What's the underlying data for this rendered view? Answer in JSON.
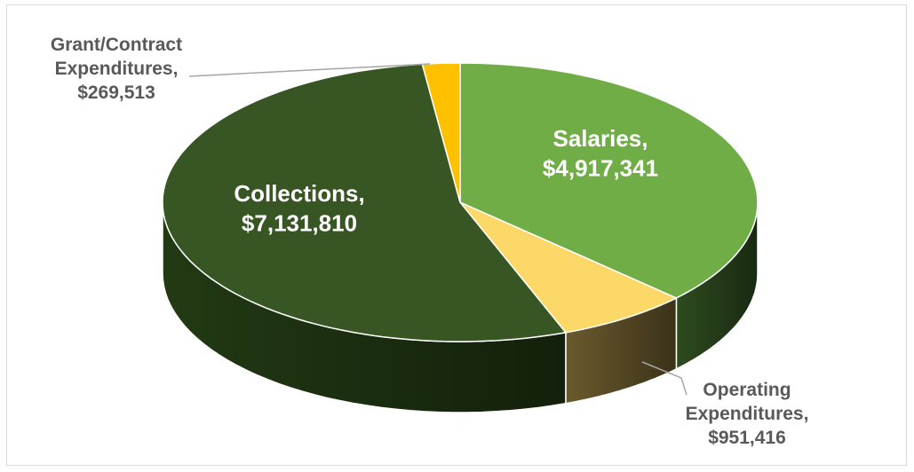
{
  "chart_data": {
    "type": "pie",
    "title": "",
    "slices": [
      {
        "label_lines": [
          "Salaries,",
          "$4,917,341"
        ],
        "value": 4917341,
        "color": "#70ad47",
        "side_color": "#2e4b1f",
        "label_color": "#ffffff"
      },
      {
        "label_lines": [
          "Operating",
          "Expenditures,",
          "$951,416"
        ],
        "value": 951416,
        "color": "#fbd867",
        "side_color": "#6b5a2e",
        "label_color": "#595959"
      },
      {
        "label_lines": [
          "Collections,",
          "$7,131,810"
        ],
        "value": 7131810,
        "color": "#375623",
        "side_color": "#223a14",
        "label_color": "#ffffff"
      },
      {
        "label_lines": [
          "Grant/Contract",
          "Expenditures,",
          "$269,513"
        ],
        "value": 269513,
        "color": "#ffc000",
        "side_color": "#8a6a00",
        "label_color": "#595959"
      }
    ],
    "start": "12 o'clock",
    "direction": "clockwise",
    "style": "3d-perspective"
  }
}
